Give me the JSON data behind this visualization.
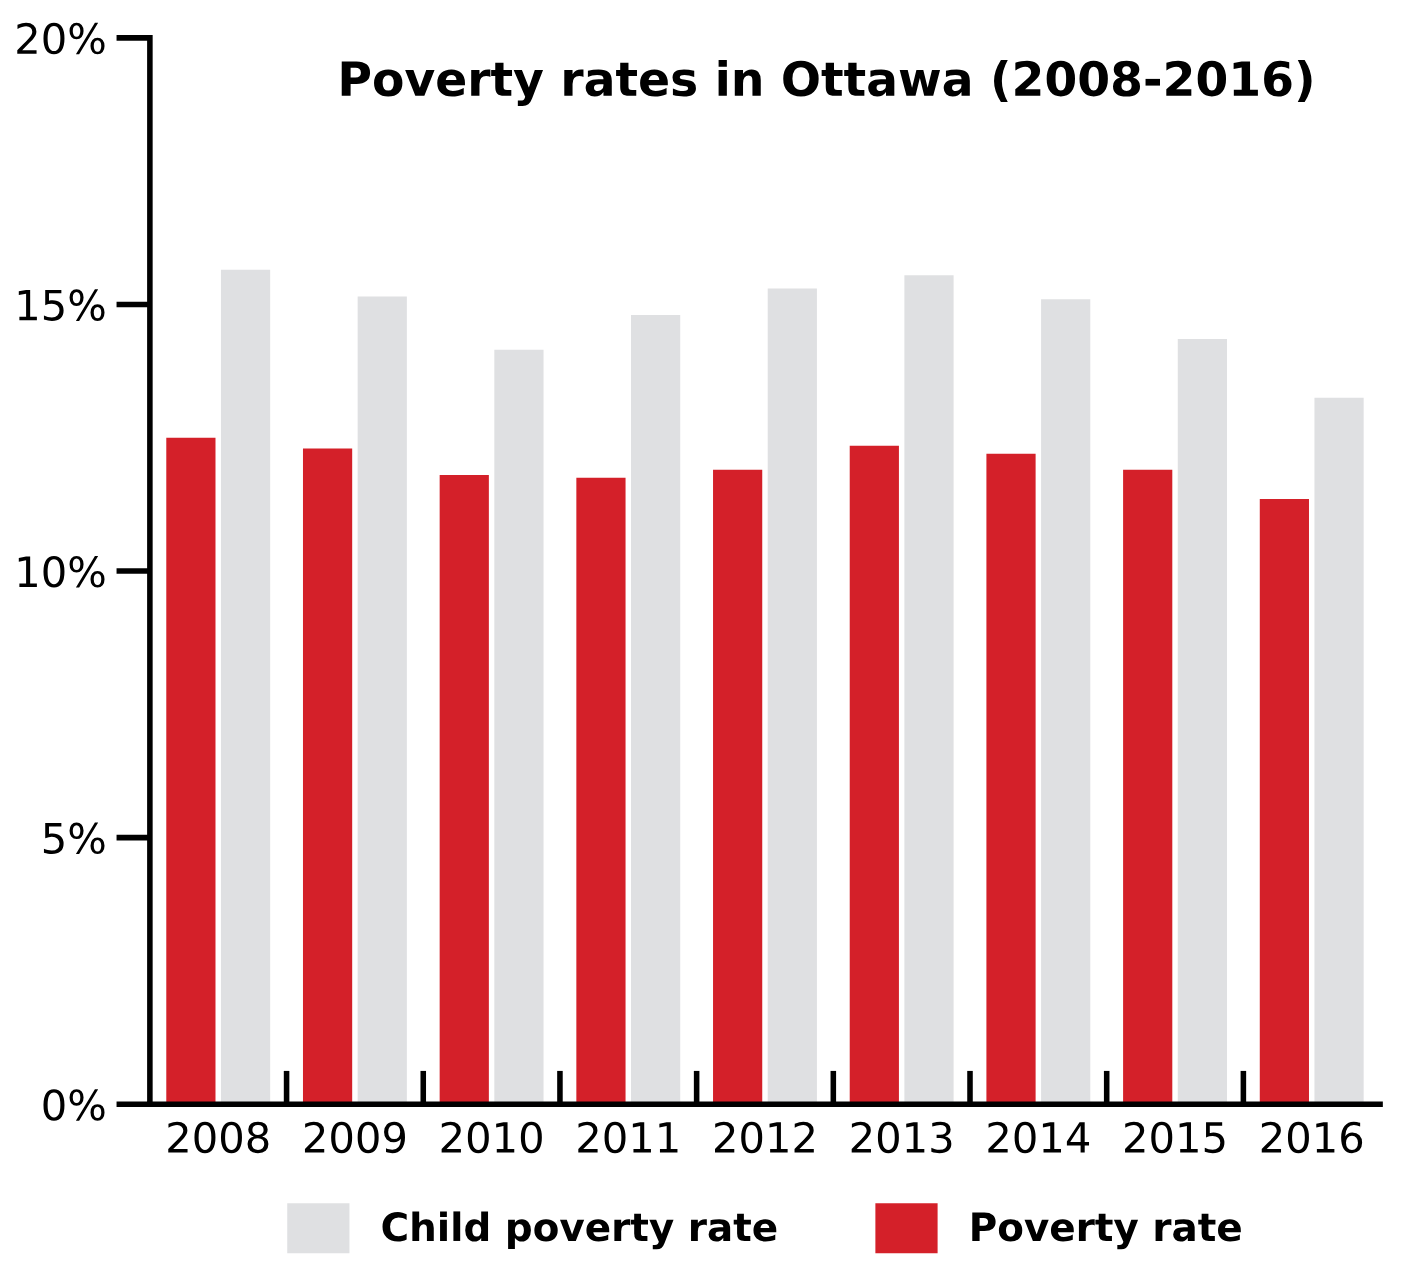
{
  "chart_data": {
    "type": "bar",
    "title": "Poverty rates in Ottawa (2008-2016)",
    "categories": [
      "2008",
      "2009",
      "2010",
      "2011",
      "2012",
      "2013",
      "2014",
      "2015",
      "2016"
    ],
    "series": [
      {
        "name": "Poverty rate",
        "color": "#d42029",
        "values": [
          12.5,
          12.3,
          11.8,
          11.75,
          11.9,
          12.35,
          12.2,
          11.9,
          11.35
        ]
      },
      {
        "name": "Child poverty rate",
        "color": "#dfe0e2",
        "values": [
          15.65,
          15.15,
          14.15,
          14.8,
          15.3,
          15.55,
          15.1,
          14.35,
          13.25
        ]
      }
    ],
    "ylim": [
      0,
      20
    ],
    "yticks": [
      {
        "value": 0,
        "label": "0%"
      },
      {
        "value": 5,
        "label": "5%"
      },
      {
        "value": 10,
        "label": "10%"
      },
      {
        "value": 15,
        "label": "15%"
      },
      {
        "value": 20,
        "label": "20%"
      }
    ],
    "grid": false,
    "legend": "bottom"
  }
}
